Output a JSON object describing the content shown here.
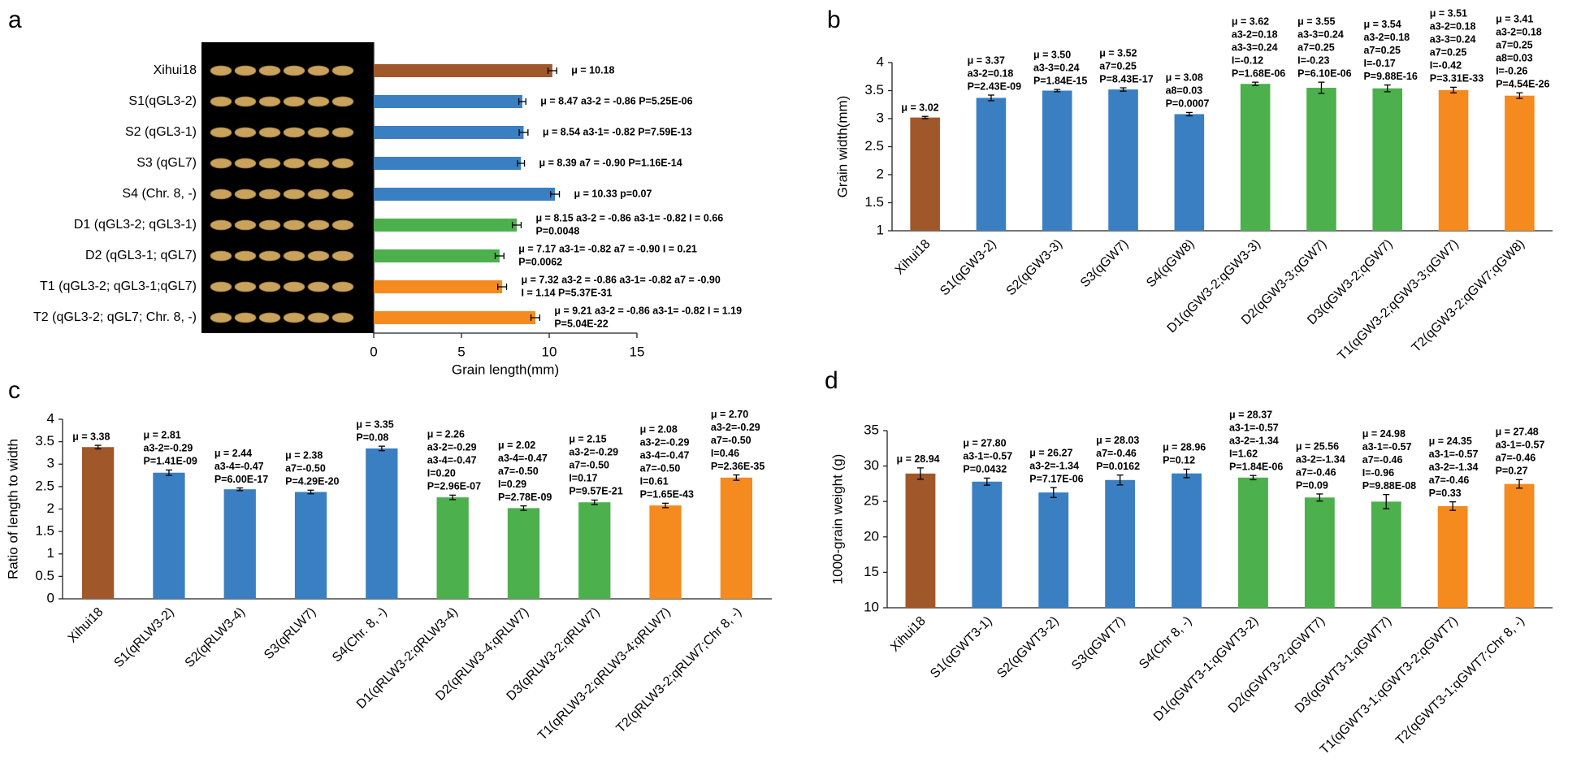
{
  "chart_data": [
    {
      "type": "bar",
      "orientation": "horizontal",
      "panel": "a",
      "categories": [
        "Xihui18",
        "S1(qGL3-2)",
        "S2 (qGL3-1)",
        "S3 (qGL7)",
        "S4 (Chr. 8, -)",
        "D1 (qGL3-2; qGL3-1)",
        "D2 (qGL3-1; qGL7)",
        "T1 (qGL3-2; qGL3-1;qGL7)",
        "T2 (qGL3-2; qGL7; Chr. 8, -)"
      ],
      "values": [
        10.18,
        8.47,
        8.54,
        8.39,
        10.33,
        8.15,
        7.17,
        7.32,
        9.21
      ],
      "errors": [
        0.25,
        0.2,
        0.25,
        0.2,
        0.25,
        0.25,
        0.25,
        0.25,
        0.25
      ],
      "colors": [
        "#a0572a",
        "#3a7fc1",
        "#3a7fc1",
        "#3a7fc1",
        "#3a7fc1",
        "#4cb04c",
        "#4cb04c",
        "#f58a1f",
        "#f58a1f"
      ],
      "annotations": [
        [
          "μ = 10.18"
        ],
        [
          "μ = 8.47  a3-2 = -0.86 P=5.25E-06"
        ],
        [
          "μ = 8.54  a3-1= -0.82 P=7.59E-13"
        ],
        [
          "μ = 8.39  a7 = -0.90 P=1.16E-14"
        ],
        [
          "μ = 10.33  p=0.07"
        ],
        [
          "μ = 8.15  a3-2 = -0.86  a3-1= -0.82  I = 0.66",
          "P=0.0048"
        ],
        [
          "μ = 7.17  a3-1= -0.82  a7 = -0.90  I = 0.21",
          "P=0.0062"
        ],
        [
          "μ = 7.32  a3-2 = -0.86  a3-1= -0.82  a7 = -0.90",
          "I = 1.14  P=5.37E-31"
        ],
        [
          "μ = 9.21  a3-2 = -0.86  a3-1= -0.82  I = 1.19",
          "P=5.04E-22"
        ]
      ],
      "xlabel": "Grain length(mm)",
      "xlim": [
        0,
        15
      ],
      "xticks": [
        0,
        5,
        10,
        15
      ],
      "grid": false
    },
    {
      "type": "bar",
      "orientation": "vertical",
      "panel": "b",
      "categories": [
        "Xihui18",
        "S1(qGW3-2)",
        "S2(qGW3-3)",
        "S3(qGW7)",
        "S4(qGW8)",
        "D1(qGW3-2;qGW3-3)",
        "D2(qGW3-3;qGW7)",
        "D3(qGW3-2;qGW7)",
        "T1(qGW3-2;qGW3-3;qGW7)",
        "T2(qGW3-2;qGW7;qGW8)"
      ],
      "values": [
        3.02,
        3.37,
        3.5,
        3.52,
        3.08,
        3.62,
        3.55,
        3.54,
        3.51,
        3.41
      ],
      "errors": [
        0.02,
        0.05,
        0.02,
        0.03,
        0.03,
        0.03,
        0.1,
        0.06,
        0.05,
        0.05
      ],
      "colors": [
        "#a0572a",
        "#3a7fc1",
        "#3a7fc1",
        "#3a7fc1",
        "#3a7fc1",
        "#4cb04c",
        "#4cb04c",
        "#4cb04c",
        "#f58a1f",
        "#f58a1f"
      ],
      "annotations": [
        [
          "μ = 3.02"
        ],
        [
          "μ = 3.37",
          "a3-2=0.18",
          "P=2.43E-09"
        ],
        [
          "μ = 3.50",
          "a3-3=0.24",
          "P=1.84E-15"
        ],
        [
          "μ = 3.52",
          "a7=0.25",
          "P=8.43E-17"
        ],
        [
          "μ = 3.08",
          "a8=0.03",
          "P=0.0007"
        ],
        [
          "μ = 3.62",
          "a3-2=0.18",
          "a3-3=0.24",
          "I=-0.12",
          "P=1.68E-06"
        ],
        [
          "μ = 3.55",
          "a3-3=0.24",
          "a7=0.25",
          "I=-0.23",
          "P=6.10E-06"
        ],
        [
          "μ = 3.54",
          "a3-2=0.18",
          "a7=0.25",
          "I=-0.17",
          "P=9.88E-16"
        ],
        [
          "μ = 3.51",
          "a3-2=0.18",
          "a3-3=0.24",
          "a7=0.25",
          "I=-0.42",
          "P=3.31E-33"
        ],
        [
          "μ = 3.41",
          "a3-2=0.18",
          "a7=0.25",
          "a8=0.03",
          "I=-0.26",
          "P=4.54E-26"
        ]
      ],
      "ylabel": "Grain width(mm)",
      "ylim": [
        1,
        4
      ],
      "yticks": [
        1,
        1.5,
        2,
        2.5,
        3,
        3.5,
        4
      ],
      "grid": false
    },
    {
      "type": "bar",
      "orientation": "vertical",
      "panel": "c",
      "categories": [
        "Xihui18",
        "S1(qRLW3-2)",
        "S2(qRLW3-4)",
        "S3(qRLW7)",
        "S4(Chr. 8, -)",
        "D1(qRLW3-2;qRLW3-4)",
        "D2(qRLW3-4;qRLW7)",
        "D3(qRLW3-2;qRLW7)",
        "T1(qRLW3-2;qRLW3-4;qRLW7)",
        "T2(qRLW3-2;qRLW7;Chr 8, -)"
      ],
      "values": [
        3.38,
        2.81,
        2.44,
        2.38,
        3.35,
        2.26,
        2.02,
        2.15,
        2.08,
        2.7
      ],
      "errors": [
        0.04,
        0.06,
        0.03,
        0.04,
        0.05,
        0.05,
        0.05,
        0.05,
        0.05,
        0.06
      ],
      "colors": [
        "#a0572a",
        "#3a7fc1",
        "#3a7fc1",
        "#3a7fc1",
        "#3a7fc1",
        "#4cb04c",
        "#4cb04c",
        "#4cb04c",
        "#f58a1f",
        "#f58a1f"
      ],
      "annotations": [
        [
          "μ = 3.38"
        ],
        [
          "μ = 2.81",
          "a3-2=-0.29",
          "P=1.41E-09"
        ],
        [
          "μ = 2.44",
          "a3-4=-0.47",
          "P=6.00E-17"
        ],
        [
          "μ = 2.38",
          "a7=-0.50",
          "P=4.29E-20"
        ],
        [
          "μ = 3.35",
          "P=0.08"
        ],
        [
          "μ = 2.26",
          "a3-2=-0.29",
          "a3-4=-0.47",
          "I=0.20",
          "P=2.96E-07"
        ],
        [
          "μ = 2.02",
          "a3-4=-0.47",
          "a7=-0.50",
          "I=0.29",
          "P=2.78E-09"
        ],
        [
          "μ = 2.15",
          "a3-2=-0.29",
          "a7=-0.50",
          "I=0.17",
          "P=9.57E-21"
        ],
        [
          "μ = 2.08",
          "a3-2=-0.29",
          "a3-4=-0.47",
          "a7=-0.50",
          "I=0.61",
          "P=1.65E-43"
        ],
        [
          "μ = 2.70",
          "a3-2=-0.29",
          "a7=-0.50",
          "I=0.46",
          "P=2.36E-35"
        ]
      ],
      "ylabel": "Ratio of length to width",
      "ylim": [
        0,
        4
      ],
      "yticks": [
        0,
        0.5,
        1,
        1.5,
        2,
        2.5,
        3,
        3.5,
        4
      ],
      "grid": false
    },
    {
      "type": "bar",
      "orientation": "vertical",
      "panel": "d",
      "categories": [
        "Xihui18",
        "S1(qGWT3-1)",
        "S2(qGWT3-2)",
        "S3(qGWT7)",
        "S4(Chr 8, -)",
        "D1(qGWT3-1;qGWT3-2)",
        "D2(qGWT3-2;qGWT7)",
        "D3(qGWT3-1;qGWT7)",
        "T1(qGWT3-1;qGWT3-2;qGWT7)",
        "T2(qGWT3-1;qGWT7;Chr 8, -)"
      ],
      "values": [
        28.94,
        27.8,
        26.27,
        28.03,
        28.96,
        28.37,
        25.56,
        24.98,
        24.35,
        27.48
      ],
      "errors": [
        0.8,
        0.5,
        0.7,
        0.7,
        0.6,
        0.3,
        0.5,
        1.0,
        0.6,
        0.6
      ],
      "colors": [
        "#a0572a",
        "#3a7fc1",
        "#3a7fc1",
        "#3a7fc1",
        "#3a7fc1",
        "#4cb04c",
        "#4cb04c",
        "#4cb04c",
        "#f58a1f",
        "#f58a1f"
      ],
      "annotations": [
        [
          "μ = 28.94"
        ],
        [
          "μ = 27.80",
          "a3-1=-0.57",
          "P=0.0432"
        ],
        [
          "μ = 26.27",
          "a3-2=-1.34",
          "P=7.17E-06"
        ],
        [
          "μ = 28.03",
          "a7=-0.46",
          "P=0.0162"
        ],
        [
          "μ = 28.96",
          "P=0.12"
        ],
        [
          "μ = 28.37",
          "a3-1=-0.57",
          "a3-2=-1.34",
          "I=1.62",
          "P=1.84E-06"
        ],
        [
          "μ = 25.56",
          "a3-2=-1.34",
          "a7=-0.46",
          "P=0.09"
        ],
        [
          "μ = 24.98",
          "a3-1=-0.57",
          "a7=-0.46",
          "I=-0.96",
          "P=9.88E-08"
        ],
        [
          "μ = 24.35",
          "a3-1=-0.57",
          "a3-2=-1.34",
          "a7=-0.46",
          "P=0.33"
        ],
        [
          "μ = 27.48",
          "a3-1=-0.57",
          "a7=-0.46",
          "P=0.27"
        ]
      ],
      "ylabel": "1000-grain weight (g)",
      "ylim": [
        10,
        35
      ],
      "yticks": [
        10,
        15,
        20,
        25,
        30,
        35
      ],
      "grid": false
    }
  ]
}
